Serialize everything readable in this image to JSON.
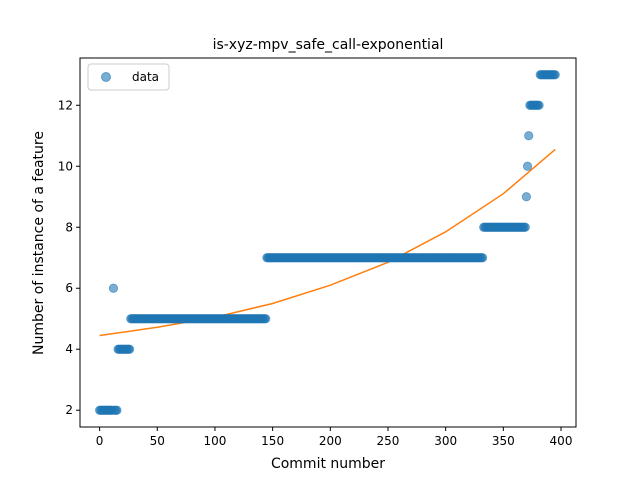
{
  "chart_data": {
    "type": "scatter",
    "title": "is-xyz-mpv_safe_call-exponential",
    "xlabel": "Commit number",
    "ylabel": "Number of instance of a feature",
    "xlim": [
      -17,
      413
    ],
    "ylim": [
      1.45,
      13.55
    ],
    "xticks": [
      0,
      50,
      100,
      150,
      200,
      250,
      300,
      350,
      400
    ],
    "yticks": [
      2,
      4,
      6,
      8,
      10,
      12
    ],
    "grid": false,
    "legend": {
      "placement": "top-left",
      "entries": [
        "data"
      ]
    },
    "colors": {
      "data": "#1f77b4",
      "fit": "#ff7f0e"
    },
    "series": [
      {
        "name": "data",
        "kind": "scatter",
        "segments": [
          {
            "x_start": 0,
            "x_end": 11,
            "y": 2
          },
          {
            "x_start": 12,
            "x_end": 12,
            "y": 6
          },
          {
            "x_start": 13,
            "x_end": 15,
            "y": 2
          },
          {
            "x_start": 16,
            "x_end": 26,
            "y": 4
          },
          {
            "x_start": 27,
            "x_end": 144,
            "y": 5
          },
          {
            "x_start": 145,
            "x_end": 332,
            "y": 7
          },
          {
            "x_start": 333,
            "x_end": 369,
            "y": 8
          },
          {
            "x_start": 370,
            "x_end": 370,
            "y": 9
          },
          {
            "x_start": 371,
            "x_end": 371,
            "y": 10
          },
          {
            "x_start": 372,
            "x_end": 372,
            "y": 11
          },
          {
            "x_start": 373,
            "x_end": 381,
            "y": 12
          },
          {
            "x_start": 382,
            "x_end": 395,
            "y": 13
          }
        ]
      },
      {
        "kind": "line",
        "x": [
          0,
          50,
          100,
          150,
          200,
          250,
          300,
          350,
          395
        ],
        "y": [
          4.45,
          4.72,
          5.05,
          5.5,
          6.1,
          6.85,
          7.85,
          9.1,
          10.55
        ]
      }
    ]
  }
}
